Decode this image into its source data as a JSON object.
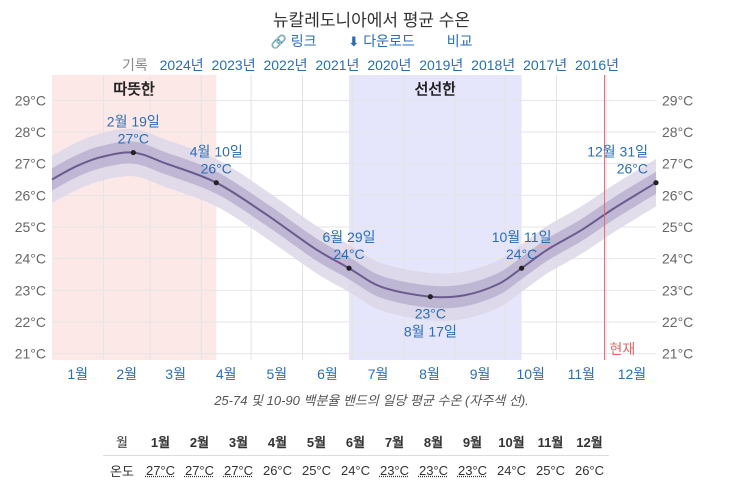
{
  "title": "뉴칼레도니아에서 평균 수온",
  "links": {
    "link_label": "링크",
    "download_label": "다운로드",
    "compare_label": "비교"
  },
  "history": {
    "label": "기록",
    "years": [
      "2024년",
      "2023년",
      "2022년",
      "2021년",
      "2020년",
      "2019년",
      "2018년",
      "2017년",
      "2016년"
    ]
  },
  "caption": "25-74 및 10-90 백분율 밴드의 일당 평균 수온 (자주색 선).",
  "table": {
    "month_header": "월",
    "temp_header": "온도",
    "months": [
      "1월",
      "2월",
      "3월",
      "4월",
      "5월",
      "6월",
      "7월",
      "8월",
      "9월",
      "10월",
      "11월",
      "12월"
    ],
    "temps": [
      "27°C",
      "27°C",
      "27°C",
      "26°C",
      "25°C",
      "24°C",
      "23°C",
      "23°C",
      "23°C",
      "24°C",
      "25°C",
      "26°C"
    ],
    "underlined": [
      true,
      true,
      true,
      false,
      false,
      false,
      true,
      true,
      true,
      false,
      false,
      false
    ]
  },
  "chart_data": {
    "type": "line",
    "x_unit": "day-of-year",
    "month_labels": [
      "1월",
      "2월",
      "3월",
      "4월",
      "5월",
      "6월",
      "7월",
      "8월",
      "9월",
      "10월",
      "11월",
      "12월"
    ],
    "yticks": [
      21,
      22,
      23,
      24,
      25,
      26,
      27,
      28,
      29
    ],
    "ytick_labels": [
      "21°C",
      "22°C",
      "23°C",
      "24°C",
      "25°C",
      "26°C",
      "27°C",
      "28°C",
      "29°C"
    ],
    "ylim": [
      20.8,
      29.8
    ],
    "series": [
      {
        "x": [
          1,
          15,
          30,
          50,
          70,
          100,
          130,
          160,
          180,
          200,
          229,
          250,
          270,
          284,
          300,
          320,
          340,
          365
        ],
        "median": [
          26.5,
          26.9,
          27.2,
          27.35,
          27.0,
          26.4,
          25.4,
          24.3,
          23.7,
          23.1,
          22.8,
          22.85,
          23.2,
          23.7,
          24.3,
          24.9,
          25.6,
          26.4
        ],
        "p25": [
          26.15,
          26.55,
          26.85,
          27.0,
          26.65,
          26.05,
          25.05,
          23.95,
          23.35,
          22.75,
          22.45,
          22.5,
          22.85,
          23.35,
          23.95,
          24.55,
          25.25,
          26.05
        ],
        "p75": [
          26.85,
          27.25,
          27.55,
          27.7,
          27.35,
          26.75,
          25.75,
          24.65,
          24.05,
          23.45,
          23.15,
          23.2,
          23.55,
          24.05,
          24.65,
          25.25,
          25.95,
          26.75
        ],
        "p10": [
          25.75,
          26.15,
          26.45,
          26.6,
          26.25,
          25.65,
          24.65,
          23.55,
          22.95,
          22.35,
          22.05,
          22.1,
          22.45,
          22.95,
          23.55,
          24.15,
          24.85,
          25.65
        ],
        "p90": [
          27.25,
          27.65,
          27.95,
          28.1,
          27.75,
          27.15,
          26.15,
          25.05,
          24.45,
          23.85,
          23.55,
          23.6,
          23.95,
          24.45,
          25.05,
          25.65,
          26.35,
          27.15
        ]
      }
    ],
    "shaded_ranges": [
      {
        "label": "따뜻한",
        "start": 1,
        "end": 100,
        "color": "#fde8e8"
      },
      {
        "label": "선선한",
        "start": 180,
        "end": 284,
        "color": "#e5e5fb"
      }
    ],
    "annotations": [
      {
        "date": "2월 19일",
        "value": "27°C",
        "x": 50,
        "y": 27.35,
        "position": "above"
      },
      {
        "date": "4월 10일",
        "value": "26°C",
        "x": 100,
        "y": 26.4,
        "position": "above"
      },
      {
        "date": "6월 29일",
        "value": "24°C",
        "x": 180,
        "y": 23.7,
        "position": "above"
      },
      {
        "date": "8월 17일",
        "value": "23°C",
        "x": 229,
        "y": 22.8,
        "position": "below"
      },
      {
        "date": "10월 11일",
        "value": "24°C",
        "x": 284,
        "y": 23.7,
        "position": "above"
      },
      {
        "date": "12월 31일",
        "value": "26°C",
        "x": 365,
        "y": 26.4,
        "position": "above-left"
      }
    ],
    "now_marker": {
      "label": "현재",
      "x": 334
    },
    "colors": {
      "line": "#6b5a8e",
      "band_inner": "#b9b0cf",
      "band_outer": "#dcd7e8",
      "now": "#e06a6a",
      "label": "#2a6db5"
    }
  }
}
